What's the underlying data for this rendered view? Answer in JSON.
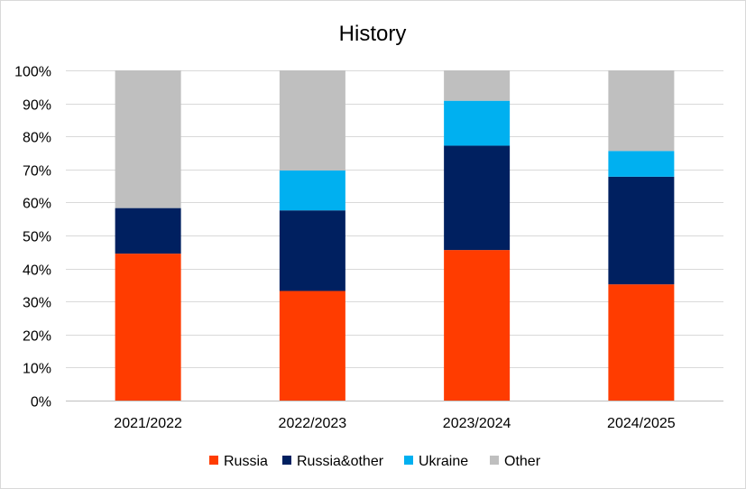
{
  "chart_data": {
    "type": "bar",
    "stacked": true,
    "title": "History",
    "xlabel": "",
    "ylabel": "",
    "categories": [
      "2021/2022",
      "2022/2023",
      "2023/2024",
      "2024/2025"
    ],
    "series": [
      {
        "name": "Russia",
        "color": "#ff3c00",
        "values": [
          44.5,
          33.2,
          45.6,
          35.2
        ]
      },
      {
        "name": "Russia&other",
        "color": "#002060",
        "values": [
          13.8,
          24.4,
          31.6,
          32.6
        ]
      },
      {
        "name": "Ukraine",
        "color": "#00b0f0",
        "values": [
          0,
          12.1,
          13.6,
          7.8
        ]
      },
      {
        "name": "Other",
        "color": "#bfbfbf",
        "values": [
          41.7,
          30.3,
          9.2,
          24.4
        ]
      }
    ],
    "ylim": [
      0,
      100
    ],
    "y_ticks": [
      "0%",
      "10%",
      "20%",
      "30%",
      "40%",
      "50%",
      "60%",
      "70%",
      "80%",
      "90%",
      "100%"
    ],
    "grid": true,
    "legend_position": "bottom"
  }
}
